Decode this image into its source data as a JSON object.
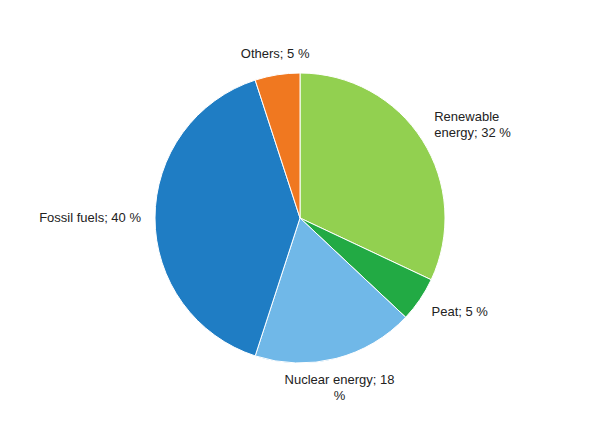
{
  "chart_data": {
    "type": "pie",
    "categories": [
      "Renewable\nenergy; 32 %",
      "Peat; 5 %",
      "Nuclear energy; 18\n%",
      "Fossil fuels; 40 %",
      "Others; 5 %"
    ],
    "values": [
      32,
      5,
      18,
      40,
      5
    ],
    "colors": [
      "#92d050",
      "#22aa44",
      "#70b8e8",
      "#1f7dc4",
      "#f07820"
    ]
  }
}
